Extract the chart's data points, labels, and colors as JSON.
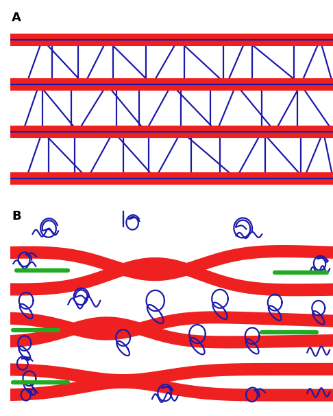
{
  "fig_width": 4.86,
  "fig_height": 6.06,
  "dpi": 100,
  "bg_color": "#ffffff",
  "label_A": "A",
  "label_B": "B",
  "label_fontsize": 13,
  "label_fontweight": "bold",
  "red_color": "#ee2020",
  "blue_color": "#1a1aaa",
  "green_color": "#22aa22",
  "red_linewidth": 13,
  "blue_linewidth": 1.6,
  "green_linewidth": 4.5
}
